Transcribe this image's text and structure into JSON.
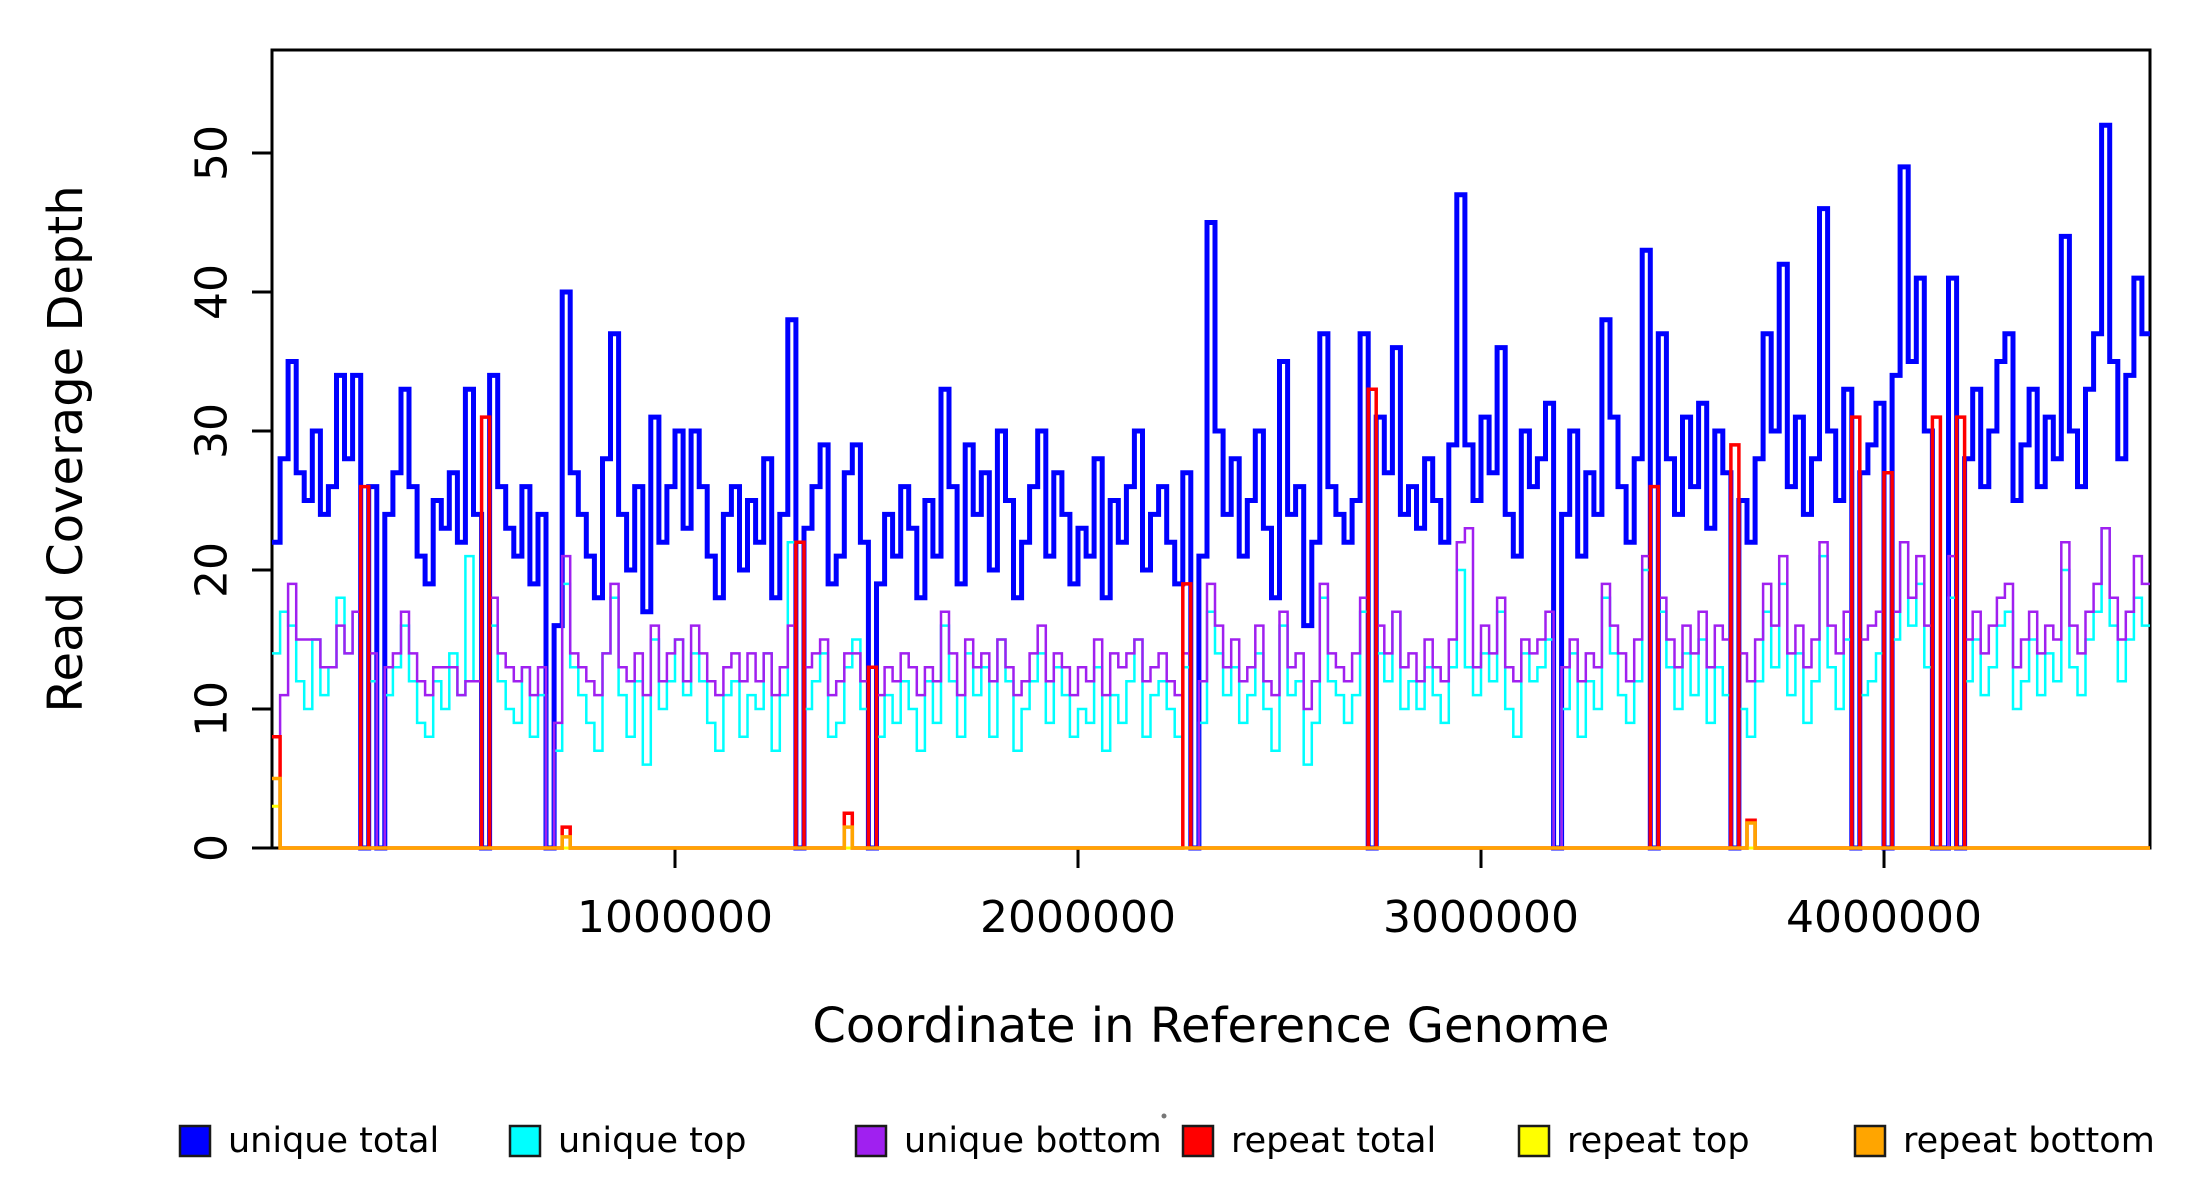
{
  "page": {
    "background": "#ffffff"
  },
  "chart_data": {
    "type": "line",
    "step": true,
    "title": "",
    "xlabel": "Coordinate in Reference Genome",
    "ylabel": "Read Coverage Depth",
    "xlim": [
      0,
      4660000
    ],
    "ylim": [
      0,
      57
    ],
    "xticks": [
      1000000,
      2000000,
      3000000,
      4000000
    ],
    "xtick_labels": [
      "1000000",
      "2000000",
      "3000000",
      "4000000"
    ],
    "yticks": [
      0,
      10,
      20,
      30,
      40,
      50
    ],
    "ytick_labels": [
      "0",
      "10",
      "20",
      "30",
      "40",
      "50"
    ],
    "grid": false,
    "legend_position": "bottom",
    "bin_size": 20000,
    "n_bins": 233,
    "series": [
      {
        "name": "unique total",
        "color": "#0000ff",
        "values": [
          22,
          28,
          35,
          27,
          25,
          30,
          24,
          26,
          34,
          28,
          34,
          0,
          26,
          0,
          24,
          27,
          33,
          26,
          21,
          19,
          25,
          23,
          27,
          22,
          33,
          24,
          0,
          34,
          26,
          23,
          21,
          26,
          19,
          24,
          0,
          16,
          40,
          27,
          24,
          21,
          18,
          28,
          37,
          24,
          20,
          26,
          17,
          31,
          22,
          26,
          30,
          23,
          30,
          26,
          21,
          18,
          24,
          26,
          20,
          25,
          22,
          28,
          18,
          24,
          38,
          0,
          23,
          26,
          29,
          19,
          21,
          27,
          29,
          22,
          0,
          19,
          24,
          21,
          26,
          23,
          18,
          25,
          21,
          33,
          26,
          19,
          29,
          24,
          27,
          20,
          30,
          25,
          18,
          22,
          26,
          30,
          21,
          27,
          24,
          19,
          23,
          21,
          28,
          18,
          25,
          22,
          26,
          30,
          20,
          24,
          26,
          22,
          19,
          27,
          0,
          21,
          45,
          30,
          24,
          28,
          21,
          25,
          30,
          23,
          18,
          35,
          24,
          26,
          16,
          22,
          37,
          26,
          24,
          22,
          25,
          37,
          0,
          31,
          27,
          36,
          24,
          26,
          23,
          28,
          25,
          22,
          29,
          47,
          29,
          25,
          31,
          27,
          36,
          24,
          21,
          30,
          26,
          28,
          32,
          0,
          24,
          30,
          21,
          27,
          24,
          38,
          31,
          26,
          22,
          28,
          43,
          0,
          37,
          28,
          24,
          31,
          26,
          32,
          23,
          30,
          27,
          0,
          25,
          22,
          28,
          37,
          30,
          42,
          26,
          31,
          24,
          28,
          46,
          30,
          25,
          33,
          0,
          27,
          29,
          32,
          0,
          34,
          49,
          35,
          41,
          30,
          0,
          0,
          41,
          0,
          28,
          33,
          26,
          30,
          35,
          37,
          25,
          29,
          33,
          26,
          31,
          28,
          44,
          30,
          26,
          33,
          37,
          52,
          35,
          28,
          34,
          41,
          37
        ]
      },
      {
        "name": "unique top",
        "color": "#00ffff",
        "values": [
          14,
          17,
          16,
          12,
          10,
          15,
          11,
          13,
          18,
          14,
          17,
          0,
          12,
          0,
          11,
          13,
          16,
          12,
          9,
          8,
          12,
          10,
          14,
          11,
          21,
          12,
          0,
          16,
          12,
          10,
          9,
          13,
          8,
          11,
          0,
          7,
          19,
          13,
          11,
          9,
          7,
          14,
          18,
          11,
          8,
          12,
          6,
          15,
          10,
          12,
          15,
          11,
          14,
          12,
          9,
          7,
          11,
          12,
          8,
          11,
          10,
          14,
          7,
          11,
          22,
          0,
          10,
          12,
          14,
          8,
          9,
          13,
          15,
          10,
          0,
          8,
          11,
          9,
          12,
          10,
          7,
          12,
          9,
          16,
          12,
          8,
          14,
          11,
          13,
          8,
          15,
          12,
          7,
          10,
          12,
          14,
          9,
          13,
          11,
          8,
          10,
          9,
          13,
          7,
          11,
          9,
          12,
          15,
          8,
          11,
          12,
          10,
          8,
          13,
          0,
          9,
          17,
          14,
          11,
          13,
          9,
          11,
          14,
          10,
          7,
          16,
          11,
          12,
          6,
          9,
          18,
          12,
          11,
          9,
          11,
          17,
          0,
          14,
          12,
          17,
          10,
          12,
          10,
          13,
          11,
          9,
          13,
          20,
          13,
          11,
          14,
          12,
          17,
          10,
          8,
          14,
          12,
          13,
          15,
          0,
          10,
          14,
          8,
          12,
          10,
          18,
          14,
          11,
          9,
          12,
          20,
          0,
          17,
          13,
          10,
          14,
          11,
          15,
          9,
          13,
          11,
          0,
          10,
          8,
          12,
          17,
          13,
          19,
          11,
          14,
          9,
          12,
          21,
          13,
          10,
          15,
          0,
          11,
          12,
          14,
          0,
          15,
          22,
          16,
          19,
          13,
          0,
          0,
          18,
          0,
          12,
          15,
          11,
          13,
          16,
          17,
          10,
          12,
          15,
          11,
          14,
          12,
          20,
          13,
          11,
          15,
          17,
          23,
          16,
          12,
          15,
          18,
          16
        ]
      },
      {
        "name": "unique bottom",
        "color": "#a020f0",
        "values": [
          8,
          11,
          19,
          15,
          15,
          15,
          13,
          13,
          16,
          14,
          17,
          0,
          14,
          0,
          13,
          14,
          17,
          14,
          12,
          11,
          13,
          13,
          13,
          11,
          12,
          12,
          0,
          18,
          14,
          13,
          12,
          13,
          11,
          13,
          0,
          9,
          21,
          14,
          13,
          12,
          11,
          14,
          19,
          13,
          12,
          14,
          11,
          16,
          12,
          14,
          15,
          12,
          16,
          14,
          12,
          11,
          13,
          14,
          12,
          14,
          12,
          14,
          11,
          13,
          16,
          0,
          13,
          14,
          15,
          11,
          12,
          14,
          14,
          12,
          0,
          11,
          13,
          12,
          14,
          13,
          11,
          13,
          12,
          17,
          14,
          11,
          15,
          13,
          14,
          12,
          15,
          13,
          11,
          12,
          14,
          16,
          12,
          14,
          13,
          11,
          13,
          12,
          15,
          11,
          14,
          13,
          14,
          15,
          12,
          13,
          14,
          12,
          11,
          14,
          0,
          12,
          19,
          16,
          13,
          15,
          12,
          13,
          16,
          12,
          11,
          17,
          13,
          14,
          10,
          12,
          19,
          14,
          13,
          12,
          14,
          18,
          0,
          16,
          14,
          17,
          13,
          14,
          12,
          15,
          13,
          12,
          15,
          22,
          23,
          13,
          16,
          14,
          18,
          13,
          12,
          15,
          14,
          15,
          17,
          0,
          13,
          15,
          12,
          14,
          13,
          19,
          16,
          14,
          12,
          15,
          21,
          0,
          18,
          15,
          13,
          16,
          14,
          17,
          13,
          16,
          15,
          0,
          14,
          12,
          15,
          19,
          16,
          21,
          14,
          16,
          13,
          15,
          22,
          16,
          14,
          17,
          0,
          15,
          16,
          17,
          0,
          17,
          22,
          18,
          21,
          16,
          0,
          0,
          21,
          0,
          15,
          17,
          14,
          16,
          18,
          19,
          13,
          15,
          17,
          14,
          16,
          15,
          22,
          16,
          14,
          17,
          19,
          23,
          18,
          15,
          17,
          21,
          19
        ]
      },
      {
        "name": "repeat total",
        "color": "#ff0000",
        "baseline": 0,
        "spikes": [
          {
            "bin": 0,
            "value": 8
          },
          {
            "bin": 11,
            "value": 26
          },
          {
            "bin": 26,
            "value": 31
          },
          {
            "bin": 36,
            "value": 1.5
          },
          {
            "bin": 65,
            "value": 22
          },
          {
            "bin": 71,
            "value": 2.5
          },
          {
            "bin": 74,
            "value": 13
          },
          {
            "bin": 113,
            "value": 19
          },
          {
            "bin": 136,
            "value": 33
          },
          {
            "bin": 171,
            "value": 26
          },
          {
            "bin": 181,
            "value": 29
          },
          {
            "bin": 183,
            "value": 2
          },
          {
            "bin": 196,
            "value": 31
          },
          {
            "bin": 200,
            "value": 27
          },
          {
            "bin": 206,
            "value": 31
          },
          {
            "bin": 209,
            "value": 31
          }
        ]
      },
      {
        "name": "repeat top",
        "color": "#ffff00",
        "baseline": 0,
        "spikes": [
          {
            "bin": 0,
            "value": 3
          }
        ]
      },
      {
        "name": "repeat bottom",
        "color": "#ffa500",
        "baseline": 0,
        "spikes": [
          {
            "bin": 0,
            "value": 5
          },
          {
            "bin": 36,
            "value": 0.8
          },
          {
            "bin": 71,
            "value": 1.5
          },
          {
            "bin": 183,
            "value": 1.8
          }
        ]
      }
    ],
    "legend": [
      {
        "label": "unique total",
        "color": "#0000ff"
      },
      {
        "label": "unique top",
        "color": "#00ffff"
      },
      {
        "label": "unique bottom",
        "color": "#a020f0"
      },
      {
        "label": "repeat total",
        "color": "#ff0000"
      },
      {
        "label": "repeat top",
        "color": "#ffff00"
      },
      {
        "label": "repeat bottom",
        "color": "#ffa500"
      }
    ]
  }
}
